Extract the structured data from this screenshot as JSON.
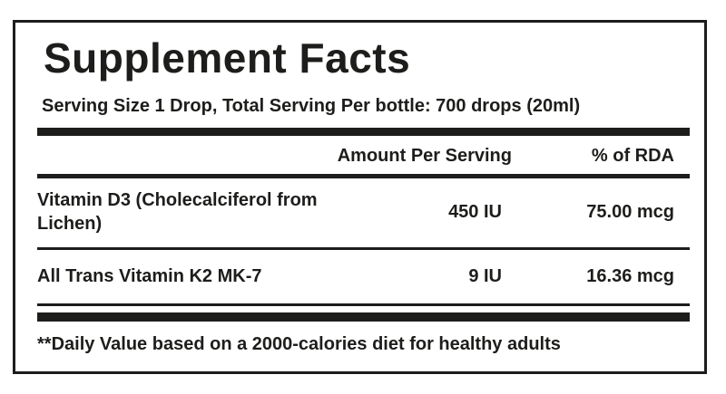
{
  "panel": {
    "title": "Supplement Facts",
    "serving_info": "Serving Size 1 Drop, Total Serving Per bottle: 700 drops (20ml)",
    "columns": {
      "amount": "Amount Per Serving",
      "rda": "% of RDA"
    },
    "rows": [
      {
        "name": "Vitamin D3 (Cholecalciferol from Lichen)",
        "amount": "450 IU",
        "rda": "75.00 mcg"
      },
      {
        "name": "All Trans Vitamin K2 MK-7",
        "amount": "9 IU",
        "rda": "16.36 mcg"
      }
    ],
    "footnote": "**Daily Value based on a 2000-calories diet for healthy adults",
    "colors": {
      "text": "#1d1d1b",
      "border": "#1d1d1b",
      "background": "#ffffff"
    }
  }
}
